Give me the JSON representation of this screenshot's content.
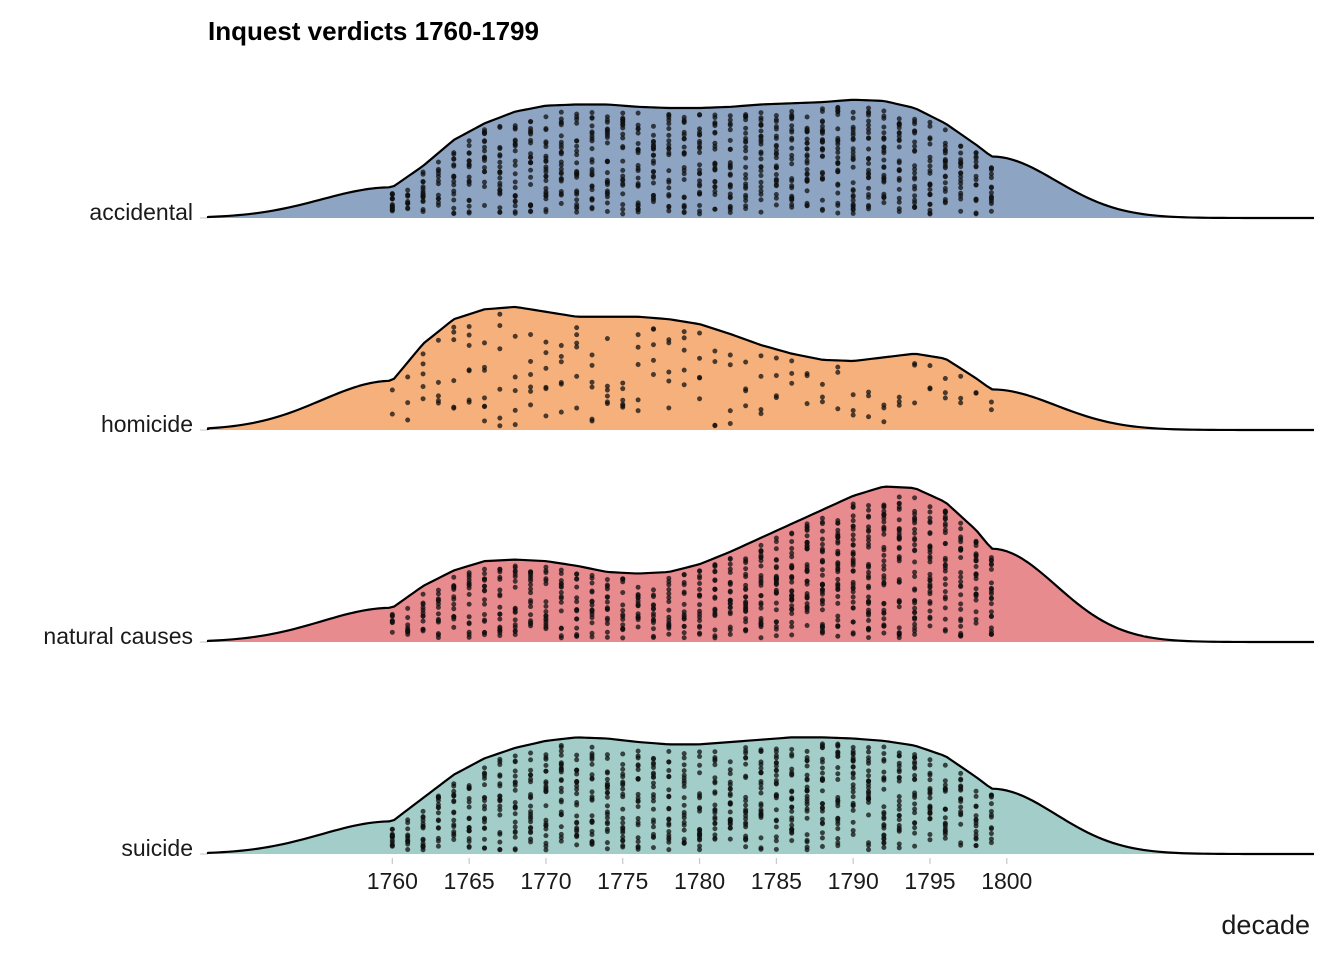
{
  "chart_data": {
    "type": "ridgeline",
    "title": "Inquest verdicts 1760-1799",
    "xlabel": "decade",
    "ylabel": "",
    "xlim": [
      1748,
      1820
    ],
    "x_ticks": [
      1760,
      1765,
      1770,
      1775,
      1780,
      1785,
      1790,
      1795,
      1800
    ],
    "legend": "none",
    "grid": false,
    "point_range": [
      1760,
      1799
    ],
    "series": [
      {
        "name": "accidental",
        "color": "#8da4c3",
        "density_peak_relative": [
          [
            1760,
            0.26
          ],
          [
            1762,
            0.44
          ],
          [
            1764,
            0.66
          ],
          [
            1766,
            0.8
          ],
          [
            1768,
            0.9
          ],
          [
            1770,
            0.95
          ],
          [
            1772,
            0.96
          ],
          [
            1774,
            0.96
          ],
          [
            1776,
            0.94
          ],
          [
            1778,
            0.93
          ],
          [
            1780,
            0.93
          ],
          [
            1782,
            0.94
          ],
          [
            1784,
            0.96
          ],
          [
            1786,
            0.97
          ],
          [
            1788,
            0.98
          ],
          [
            1790,
            1.0
          ],
          [
            1792,
            0.99
          ],
          [
            1794,
            0.93
          ],
          [
            1796,
            0.8
          ],
          [
            1798,
            0.62
          ],
          [
            1799,
            0.52
          ]
        ],
        "relative_height": 0.73,
        "counts_per_year": [
          14,
          10,
          16,
          12,
          17,
          18,
          19,
          21,
          22,
          23,
          24,
          24,
          24,
          24,
          24,
          24,
          24,
          23,
          22,
          23,
          24,
          24,
          24,
          24,
          25,
          25,
          25,
          26,
          26,
          26,
          26,
          25,
          25,
          24,
          23,
          22,
          20,
          18,
          16,
          14
        ]
      },
      {
        "name": "homicide",
        "color": "#f5b07c",
        "density_peak_relative": [
          [
            1760,
            0.4
          ],
          [
            1762,
            0.7
          ],
          [
            1764,
            0.9
          ],
          [
            1766,
            0.98
          ],
          [
            1768,
            1.0
          ],
          [
            1770,
            0.96
          ],
          [
            1772,
            0.92
          ],
          [
            1774,
            0.92
          ],
          [
            1776,
            0.92
          ],
          [
            1778,
            0.9
          ],
          [
            1780,
            0.86
          ],
          [
            1782,
            0.78
          ],
          [
            1784,
            0.69
          ],
          [
            1786,
            0.62
          ],
          [
            1788,
            0.57
          ],
          [
            1790,
            0.56
          ],
          [
            1792,
            0.59
          ],
          [
            1794,
            0.62
          ],
          [
            1796,
            0.58
          ],
          [
            1798,
            0.42
          ],
          [
            1799,
            0.33
          ]
        ],
        "relative_height": 0.76,
        "counts_per_year": [
          2,
          3,
          5,
          5,
          6,
          7,
          7,
          6,
          5,
          6,
          6,
          6,
          6,
          6,
          6,
          6,
          5,
          5,
          5,
          5,
          5,
          4,
          4,
          4,
          4,
          4,
          3,
          3,
          3,
          3,
          3,
          3,
          3,
          3,
          3,
          3,
          3,
          3,
          2,
          2
        ]
      },
      {
        "name": "natural causes",
        "color": "#e88b8f",
        "density_peak_relative": [
          [
            1760,
            0.22
          ],
          [
            1762,
            0.36
          ],
          [
            1764,
            0.46
          ],
          [
            1766,
            0.52
          ],
          [
            1768,
            0.53
          ],
          [
            1770,
            0.52
          ],
          [
            1772,
            0.49
          ],
          [
            1774,
            0.45
          ],
          [
            1776,
            0.44
          ],
          [
            1778,
            0.45
          ],
          [
            1780,
            0.5
          ],
          [
            1782,
            0.58
          ],
          [
            1784,
            0.67
          ],
          [
            1786,
            0.76
          ],
          [
            1788,
            0.85
          ],
          [
            1790,
            0.94
          ],
          [
            1792,
            1.0
          ],
          [
            1794,
            0.99
          ],
          [
            1796,
            0.9
          ],
          [
            1798,
            0.72
          ],
          [
            1799,
            0.6
          ]
        ],
        "relative_height": 0.96,
        "counts_per_year": [
          8,
          9,
          12,
          14,
          15,
          16,
          17,
          18,
          18,
          18,
          17,
          16,
          16,
          16,
          15,
          15,
          15,
          15,
          16,
          16,
          18,
          20,
          22,
          24,
          26,
          28,
          30,
          32,
          33,
          34,
          34,
          34,
          34,
          33,
          32,
          30,
          28,
          26,
          24,
          22
        ]
      },
      {
        "name": "suicide",
        "color": "#a2cdc8",
        "density_peak_relative": [
          [
            1760,
            0.28
          ],
          [
            1762,
            0.48
          ],
          [
            1764,
            0.68
          ],
          [
            1766,
            0.82
          ],
          [
            1768,
            0.91
          ],
          [
            1770,
            0.97
          ],
          [
            1772,
            1.0
          ],
          [
            1774,
            0.99
          ],
          [
            1776,
            0.96
          ],
          [
            1778,
            0.94
          ],
          [
            1780,
            0.94
          ],
          [
            1782,
            0.96
          ],
          [
            1784,
            0.98
          ],
          [
            1786,
            1.0
          ],
          [
            1788,
            1.0
          ],
          [
            1790,
            0.99
          ],
          [
            1792,
            0.97
          ],
          [
            1794,
            0.93
          ],
          [
            1796,
            0.84
          ],
          [
            1798,
            0.66
          ],
          [
            1799,
            0.56
          ]
        ],
        "relative_height": 0.72,
        "counts_per_year": [
          13,
          11,
          15,
          16,
          17,
          18,
          19,
          20,
          21,
          22,
          23,
          24,
          24,
          24,
          23,
          23,
          22,
          22,
          21,
          21,
          22,
          22,
          23,
          24,
          24,
          24,
          24,
          24,
          24,
          24,
          24,
          24,
          24,
          23,
          22,
          21,
          19,
          17,
          15,
          13
        ]
      }
    ]
  }
}
